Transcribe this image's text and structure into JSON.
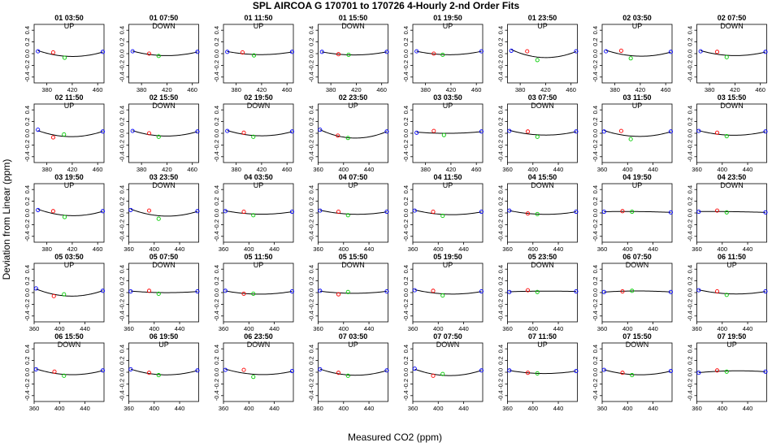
{
  "chart_data": {
    "type": "scatter",
    "title": "SPL   AIRCOA G   170701 to 170726   4-Hourly 2-nd Order Fits",
    "xlabel": "Measured CO2 (ppm)",
    "ylabel": "Deviation from Linear (ppm)",
    "ylim": [
      -0.5,
      0.5
    ],
    "yticks": [
      -0.4,
      -0.2,
      0.0,
      0.2,
      0.4
    ],
    "colors": {
      "low": "#0000ff",
      "mid1": "#ff0000",
      "mid2": "#00cc00",
      "curve": "#000000",
      "frame": "#000000"
    },
    "panels": [
      {
        "title": "01 03:50",
        "direction": "UP",
        "xlim": [
          360,
          470
        ],
        "xticks": [
          380,
          420,
          460
        ],
        "points": [
          [
            366,
            0.04
          ],
          [
            390,
            0.02
          ],
          [
            408,
            -0.07
          ],
          [
            468,
            0.03
          ]
        ]
      },
      {
        "title": "01 07:50",
        "direction": "DOWN",
        "xlim": [
          360,
          470
        ],
        "xticks": [
          380,
          420,
          460
        ],
        "points": [
          [
            366,
            0.04
          ],
          [
            392,
            0.0
          ],
          [
            407,
            -0.04
          ],
          [
            468,
            0.03
          ]
        ]
      },
      {
        "title": "01 11:50",
        "direction": "UP",
        "xlim": [
          360,
          470
        ],
        "xticks": [
          380,
          420,
          460
        ],
        "points": [
          [
            366,
            0.03
          ],
          [
            390,
            0.02
          ],
          [
            408,
            -0.03
          ],
          [
            468,
            0.03
          ]
        ]
      },
      {
        "title": "01 15:50",
        "direction": "DOWN",
        "xlim": [
          360,
          470
        ],
        "xticks": [
          380,
          420,
          460
        ],
        "points": [
          [
            366,
            0.03
          ],
          [
            392,
            -0.01
          ],
          [
            408,
            -0.02
          ],
          [
            468,
            0.03
          ]
        ]
      },
      {
        "title": "01 19:50",
        "direction": "UP",
        "xlim": [
          360,
          470
        ],
        "xticks": [
          380,
          420,
          460
        ],
        "points": [
          [
            366,
            0.04
          ],
          [
            393,
            0.0
          ],
          [
            407,
            -0.02
          ],
          [
            468,
            0.04
          ]
        ]
      },
      {
        "title": "01 23:50",
        "direction": "UP",
        "xlim": [
          360,
          470
        ],
        "xticks": [
          380,
          420,
          460
        ],
        "points": [
          [
            366,
            0.05
          ],
          [
            391,
            0.04
          ],
          [
            407,
            -0.11
          ],
          [
            468,
            0.04
          ]
        ]
      },
      {
        "title": "02 03:50",
        "direction": "UP",
        "xlim": [
          360,
          470
        ],
        "xticks": [
          380,
          420,
          460
        ],
        "points": [
          [
            366,
            0.04
          ],
          [
            390,
            0.05
          ],
          [
            405,
            -0.08
          ],
          [
            468,
            0.03
          ]
        ]
      },
      {
        "title": "02 07:50",
        "direction": "DOWN",
        "xlim": [
          360,
          470
        ],
        "xticks": [
          380,
          420,
          460
        ],
        "points": [
          [
            366,
            0.04
          ],
          [
            392,
            0.03
          ],
          [
            407,
            -0.06
          ],
          [
            468,
            0.03
          ]
        ]
      },
      {
        "title": "02 11:50",
        "direction": "UP",
        "xlim": [
          360,
          470
        ],
        "xticks": [
          380,
          420,
          460
        ],
        "points": [
          [
            366,
            0.06
          ],
          [
            390,
            -0.07
          ],
          [
            407,
            -0.02
          ],
          [
            468,
            0.03
          ]
        ]
      },
      {
        "title": "02 15:50",
        "direction": "DOWN",
        "xlim": [
          360,
          470
        ],
        "xticks": [
          380,
          420,
          460
        ],
        "points": [
          [
            366,
            0.04
          ],
          [
            392,
            0.0
          ],
          [
            407,
            -0.06
          ],
          [
            468,
            0.03
          ]
        ]
      },
      {
        "title": "02 19:50",
        "direction": "DOWN",
        "xlim": [
          360,
          470
        ],
        "xticks": [
          380,
          420,
          460
        ],
        "points": [
          [
            366,
            0.04
          ],
          [
            392,
            0.01
          ],
          [
            407,
            -0.06
          ],
          [
            468,
            0.03
          ]
        ]
      },
      {
        "title": "02 23:50",
        "direction": "UP",
        "xlim": [
          360,
          470
        ],
        "xticks": [
          360,
          400,
          440
        ],
        "points": [
          [
            363,
            0.06
          ],
          [
            391,
            -0.04
          ],
          [
            407,
            -0.08
          ],
          [
            468,
            0.03
          ]
        ]
      },
      {
        "title": "03 03:50",
        "direction": "UP",
        "xlim": [
          360,
          470
        ],
        "xticks": [
          380,
          420,
          460
        ],
        "points": [
          [
            366,
            0.01
          ],
          [
            393,
            0.04
          ],
          [
            409,
            -0.03
          ],
          [
            468,
            0.03
          ]
        ]
      },
      {
        "title": "03 07:50",
        "direction": "DOWN",
        "xlim": [
          360,
          470
        ],
        "xticks": [
          360,
          400,
          440
        ],
        "points": [
          [
            363,
            0.04
          ],
          [
            392,
            0.03
          ],
          [
            407,
            -0.06
          ],
          [
            468,
            0.03
          ]
        ]
      },
      {
        "title": "03 11:50",
        "direction": "UP",
        "xlim": [
          360,
          470
        ],
        "xticks": [
          360,
          400,
          440
        ],
        "points": [
          [
            363,
            0.03
          ],
          [
            390,
            0.04
          ],
          [
            405,
            -0.1
          ],
          [
            468,
            0.03
          ]
        ]
      },
      {
        "title": "03 15:50",
        "direction": "DOWN",
        "xlim": [
          360,
          470
        ],
        "xticks": [
          360,
          400,
          440
        ],
        "points": [
          [
            363,
            0.04
          ],
          [
            392,
            0.01
          ],
          [
            407,
            -0.05
          ],
          [
            468,
            0.03
          ]
        ]
      },
      {
        "title": "03 19:50",
        "direction": "UP",
        "xlim": [
          360,
          470
        ],
        "xticks": [
          380,
          420,
          460
        ],
        "points": [
          [
            366,
            0.05
          ],
          [
            390,
            0.03
          ],
          [
            408,
            -0.07
          ],
          [
            468,
            0.03
          ]
        ]
      },
      {
        "title": "03 23:50",
        "direction": "DOWN",
        "xlim": [
          360,
          470
        ],
        "xticks": [
          360,
          400,
          440
        ],
        "points": [
          [
            363,
            0.05
          ],
          [
            392,
            0.04
          ],
          [
            407,
            -0.1
          ],
          [
            468,
            0.03
          ]
        ]
      },
      {
        "title": "04 03:50",
        "direction": "UP",
        "xlim": [
          360,
          470
        ],
        "xticks": [
          360,
          400,
          440
        ],
        "points": [
          [
            363,
            0.03
          ],
          [
            392,
            0.02
          ],
          [
            407,
            -0.04
          ],
          [
            468,
            0.02
          ]
        ]
      },
      {
        "title": "04 07:50",
        "direction": "UP",
        "xlim": [
          360,
          470
        ],
        "xticks": [
          360,
          400,
          440
        ],
        "points": [
          [
            363,
            0.04
          ],
          [
            392,
            0.02
          ],
          [
            407,
            -0.04
          ],
          [
            468,
            0.02
          ]
        ]
      },
      {
        "title": "04 11:50",
        "direction": "UP",
        "xlim": [
          360,
          470
        ],
        "xticks": [
          360,
          400,
          440
        ],
        "points": [
          [
            363,
            0.04
          ],
          [
            392,
            0.02
          ],
          [
            407,
            -0.05
          ],
          [
            468,
            0.02
          ]
        ]
      },
      {
        "title": "04 15:50",
        "direction": "DOWN",
        "xlim": [
          360,
          470
        ],
        "xticks": [
          360,
          400,
          440
        ],
        "points": [
          [
            363,
            0.04
          ],
          [
            392,
            -0.01
          ],
          [
            407,
            -0.02
          ],
          [
            468,
            0.02
          ]
        ]
      },
      {
        "title": "04 19:50",
        "direction": "UP",
        "xlim": [
          360,
          470
        ],
        "xticks": [
          360,
          400,
          440
        ],
        "points": [
          [
            363,
            0.02
          ],
          [
            392,
            0.03
          ],
          [
            407,
            0.02
          ],
          [
            468,
            0.01
          ]
        ]
      },
      {
        "title": "04 23:50",
        "direction": "DOWN",
        "xlim": [
          360,
          470
        ],
        "xticks": [
          360,
          400,
          440
        ],
        "points": [
          [
            363,
            0.02
          ],
          [
            392,
            0.04
          ],
          [
            407,
            0.01
          ],
          [
            468,
            0.01
          ]
        ]
      },
      {
        "title": "05 03:50",
        "direction": "UP",
        "xlim": [
          360,
          470
        ],
        "xticks": [
          360,
          400,
          440
        ],
        "points": [
          [
            363,
            0.07
          ],
          [
            391,
            -0.06
          ],
          [
            407,
            -0.03
          ],
          [
            468,
            0.03
          ]
        ]
      },
      {
        "title": "05 07:50",
        "direction": "DOWN",
        "xlim": [
          360,
          470
        ],
        "xticks": [
          360,
          400,
          440
        ],
        "points": [
          [
            363,
            0.02
          ],
          [
            392,
            0.03
          ],
          [
            407,
            -0.02
          ],
          [
            468,
            0.02
          ]
        ]
      },
      {
        "title": "05 11:50",
        "direction": "UP",
        "xlim": [
          360,
          470
        ],
        "xticks": [
          360,
          400,
          440
        ],
        "points": [
          [
            363,
            0.03
          ],
          [
            392,
            -0.02
          ],
          [
            407,
            -0.02
          ],
          [
            468,
            0.02
          ]
        ]
      },
      {
        "title": "05 15:50",
        "direction": "DOWN",
        "xlim": [
          360,
          470
        ],
        "xticks": [
          360,
          400,
          440
        ],
        "points": [
          [
            363,
            0.03
          ],
          [
            392,
            -0.03
          ],
          [
            407,
            0.01
          ],
          [
            468,
            0.02
          ]
        ]
      },
      {
        "title": "05 19:50",
        "direction": "UP",
        "xlim": [
          360,
          470
        ],
        "xticks": [
          360,
          400,
          440
        ],
        "points": [
          [
            363,
            0.04
          ],
          [
            392,
            0.03
          ],
          [
            407,
            -0.05
          ],
          [
            468,
            0.02
          ]
        ]
      },
      {
        "title": "05 23:50",
        "direction": "DOWN",
        "xlim": [
          360,
          470
        ],
        "xticks": [
          360,
          400,
          440
        ],
        "points": [
          [
            363,
            0.01
          ],
          [
            392,
            0.04
          ],
          [
            407,
            0.01
          ],
          [
            468,
            0.02
          ]
        ]
      },
      {
        "title": "06 07:50",
        "direction": "DOWN",
        "xlim": [
          360,
          470
        ],
        "xticks": [
          360,
          400,
          440
        ],
        "points": [
          [
            363,
            0.01
          ],
          [
            392,
            0.02
          ],
          [
            407,
            0.03
          ],
          [
            468,
            0.01
          ]
        ]
      },
      {
        "title": "06 11:50",
        "direction": "UP",
        "xlim": [
          360,
          470
        ],
        "xticks": [
          360,
          400,
          440
        ],
        "points": [
          [
            363,
            0.04
          ],
          [
            392,
            0.02
          ],
          [
            407,
            -0.04
          ],
          [
            468,
            0.02
          ]
        ]
      },
      {
        "title": "06 15:50",
        "direction": "DOWN",
        "xlim": [
          360,
          470
        ],
        "xticks": [
          360,
          400,
          440
        ],
        "points": [
          [
            363,
            0.05
          ],
          [
            392,
            0.01
          ],
          [
            407,
            -0.06
          ],
          [
            468,
            0.03
          ]
        ]
      },
      {
        "title": "06 19:50",
        "direction": "UP",
        "xlim": [
          360,
          470
        ],
        "xticks": [
          360,
          400,
          440
        ],
        "points": [
          [
            363,
            0.05
          ],
          [
            392,
            -0.01
          ],
          [
            407,
            -0.05
          ],
          [
            468,
            0.03
          ]
        ]
      },
      {
        "title": "06 23:50",
        "direction": "DOWN",
        "xlim": [
          360,
          470
        ],
        "xticks": [
          360,
          400,
          440
        ],
        "points": [
          [
            363,
            0.04
          ],
          [
            392,
            0.04
          ],
          [
            407,
            -0.08
          ],
          [
            468,
            0.02
          ]
        ]
      },
      {
        "title": "07 03:50",
        "direction": "UP",
        "xlim": [
          360,
          470
        ],
        "xticks": [
          360,
          400,
          440
        ],
        "points": [
          [
            363,
            0.05
          ],
          [
            392,
            -0.01
          ],
          [
            407,
            -0.06
          ],
          [
            468,
            0.03
          ]
        ]
      },
      {
        "title": "07 07:50",
        "direction": "DOWN",
        "xlim": [
          360,
          470
        ],
        "xticks": [
          360,
          400,
          440
        ],
        "points": [
          [
            363,
            0.06
          ],
          [
            392,
            -0.06
          ],
          [
            407,
            -0.03
          ],
          [
            468,
            0.03
          ]
        ]
      },
      {
        "title": "07 11:50",
        "direction": "UP",
        "xlim": [
          360,
          470
        ],
        "xticks": [
          360,
          400,
          440
        ],
        "points": [
          [
            363,
            0.03
          ],
          [
            392,
            -0.01
          ],
          [
            407,
            -0.02
          ],
          [
            468,
            0.02
          ]
        ]
      },
      {
        "title": "07 15:50",
        "direction": "DOWN",
        "xlim": [
          360,
          470
        ],
        "xticks": [
          360,
          400,
          440
        ],
        "points": [
          [
            363,
            0.04
          ],
          [
            392,
            -0.01
          ],
          [
            407,
            -0.05
          ],
          [
            468,
            0.02
          ]
        ]
      },
      {
        "title": "07 19:50",
        "direction": "UP",
        "xlim": [
          360,
          470
        ],
        "xticks": [
          360,
          400,
          440
        ],
        "points": [
          [
            363,
            -0.01
          ],
          [
            392,
            0.03
          ],
          [
            407,
            0.01
          ],
          [
            468,
            0.01
          ]
        ]
      }
    ]
  }
}
